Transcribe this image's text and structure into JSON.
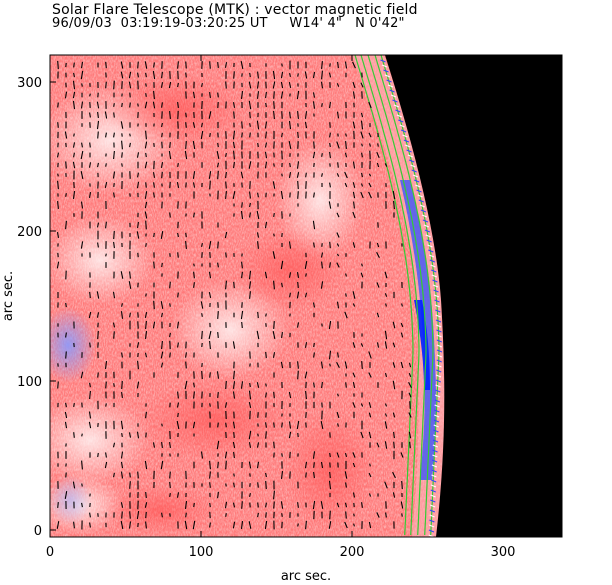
{
  "figure": {
    "title": "Solar Flare Telescope (MTK) : vector magnetic field",
    "subtitle": "96/09/03  03:19:19-03:20:25 UT     W14' 4\"   N 0'42\"",
    "x_axis_label": "arc sec.",
    "y_axis_label": "arc sec.",
    "x_ticks": [
      "0",
      "100",
      "200",
      "300"
    ],
    "y_ticks": [
      "0",
      "100",
      "200",
      "300"
    ],
    "x_range": [
      0,
      340
    ],
    "y_range": [
      0,
      315
    ]
  },
  "colors": {
    "background": "#ffffff",
    "field_red": "#ff6b6b",
    "field_light": "#ffd6d6",
    "field_blue": "#6a7dff",
    "limb_blue": "#2244ff",
    "off_disk": "#000000",
    "contour_green": "#33cc33",
    "vector_arrows": "#000000"
  }
}
